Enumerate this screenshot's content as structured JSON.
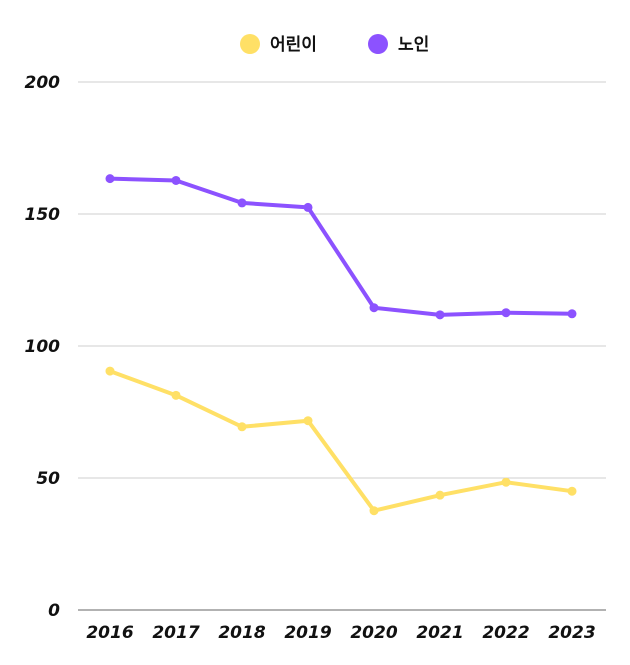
{
  "chart_data": {
    "type": "line",
    "categories": [
      "2016",
      "2017",
      "2018",
      "2019",
      "2020",
      "2021",
      "2022",
      "2023"
    ],
    "series": [
      {
        "name": "어린이",
        "color": "#FFE066",
        "values": [
          90.5,
          81.3,
          69.4,
          71.7,
          37.6,
          43.5,
          48.4,
          45.0
        ]
      },
      {
        "name": "노인",
        "color": "#8C52FF",
        "values": [
          163.4,
          162.7,
          154.2,
          152.5,
          114.5,
          111.8,
          112.6,
          112.2
        ]
      }
    ],
    "y_ticks": [
      "0",
      "50",
      "100",
      "150",
      "200"
    ],
    "ylim": [
      0,
      200
    ],
    "grid": true,
    "legend_position": "top-center"
  }
}
